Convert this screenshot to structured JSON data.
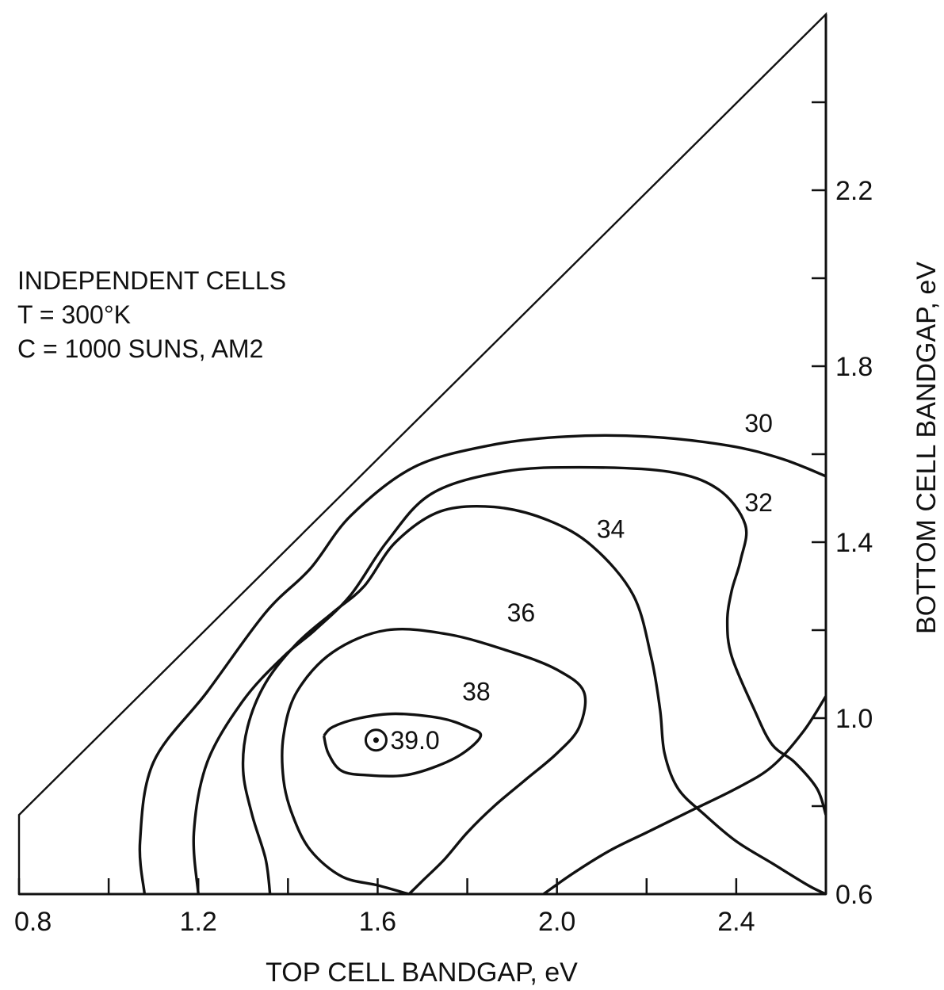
{
  "chart_data": {
    "type": "contour",
    "xlabel": "TOP CELL BANDGAP, eV",
    "ylabel": "BOTTOM CELL BANDGAP, eV",
    "xlim": [
      0.8,
      2.6
    ],
    "ylim": [
      0.6,
      2.6
    ],
    "x_ticks": [
      0.8,
      1.2,
      1.6,
      2.0,
      2.4
    ],
    "x_minor_ticks": [
      1.0,
      1.4,
      1.8,
      2.2
    ],
    "y_ticks": [
      0.6,
      1.0,
      1.4,
      1.8,
      2.2
    ],
    "y_minor_ticks": [
      0.8,
      1.2,
      1.6,
      2.0,
      2.4
    ],
    "annotation_lines": [
      "INDEPENDENT CELLS",
      "T  =  300°K",
      "C  =  1000 SUNS, AM2"
    ],
    "boundary": {
      "description": "region where bottom cell bandgap < top cell bandgap",
      "points": [
        [
          0.8,
          0.6
        ],
        [
          0.8,
          0.78
        ],
        [
          2.6,
          2.6
        ],
        [
          2.6,
          0.6
        ]
      ]
    },
    "optimum": {
      "x": 1.6,
      "y": 0.95,
      "label": "39.0"
    },
    "contours": [
      {
        "level": 30,
        "label": "30",
        "label_at": [
          2.45,
          1.67
        ],
        "points": [
          [
            1.08,
            0.6
          ],
          [
            1.07,
            0.72
          ],
          [
            1.1,
            0.9
          ],
          [
            1.22,
            1.06
          ],
          [
            1.35,
            1.24
          ],
          [
            1.45,
            1.34
          ],
          [
            1.54,
            1.46
          ],
          [
            1.68,
            1.57
          ],
          [
            1.85,
            1.62
          ],
          [
            2.02,
            1.64
          ],
          [
            2.2,
            1.64
          ],
          [
            2.38,
            1.62
          ],
          [
            2.5,
            1.59
          ],
          [
            2.6,
            1.55
          ]
        ]
      },
      {
        "level": 32,
        "label": "32",
        "label_at": [
          2.45,
          1.49
        ],
        "points": [
          [
            1.2,
            0.6
          ],
          [
            1.19,
            0.74
          ],
          [
            1.22,
            0.9
          ],
          [
            1.3,
            1.04
          ],
          [
            1.39,
            1.14
          ],
          [
            1.46,
            1.2
          ],
          [
            1.54,
            1.28
          ],
          [
            1.62,
            1.4
          ],
          [
            1.72,
            1.51
          ],
          [
            1.88,
            1.56
          ],
          [
            2.05,
            1.57
          ],
          [
            2.25,
            1.56
          ],
          [
            2.36,
            1.52
          ],
          [
            2.42,
            1.44
          ],
          [
            2.41,
            1.36
          ],
          [
            2.39,
            1.29
          ],
          [
            2.38,
            1.22
          ],
          [
            2.39,
            1.14
          ],
          [
            2.44,
            1.02
          ],
          [
            2.48,
            0.94
          ],
          [
            2.53,
            0.9
          ],
          [
            2.58,
            0.84
          ],
          [
            2.6,
            0.78
          ]
        ]
      },
      {
        "level": 34,
        "label": "34",
        "label_at": [
          2.12,
          1.43
        ],
        "points": [
          [
            1.36,
            0.6
          ],
          [
            1.35,
            0.68
          ],
          [
            1.32,
            0.78
          ],
          [
            1.3,
            0.88
          ],
          [
            1.31,
            0.98
          ],
          [
            1.35,
            1.08
          ],
          [
            1.42,
            1.17
          ],
          [
            1.5,
            1.24
          ],
          [
            1.57,
            1.3
          ],
          [
            1.64,
            1.4
          ],
          [
            1.74,
            1.47
          ],
          [
            1.86,
            1.48
          ],
          [
            1.98,
            1.45
          ],
          [
            2.08,
            1.39
          ],
          [
            2.17,
            1.28
          ],
          [
            2.21,
            1.14
          ],
          [
            2.23,
            1.02
          ],
          [
            2.24,
            0.92
          ],
          [
            2.27,
            0.84
          ],
          [
            2.33,
            0.78
          ],
          [
            2.4,
            0.72
          ],
          [
            2.48,
            0.67
          ],
          [
            2.56,
            0.62
          ],
          [
            2.6,
            0.6
          ]
        ]
      },
      {
        "level": 36,
        "label": "36",
        "label_at": [
          1.92,
          1.24
        ],
        "points": [
          [
            1.67,
            0.6
          ],
          [
            1.6,
            0.62
          ],
          [
            1.52,
            0.64
          ],
          [
            1.45,
            0.7
          ],
          [
            1.41,
            0.78
          ],
          [
            1.39,
            0.86
          ],
          [
            1.39,
            0.96
          ],
          [
            1.42,
            1.06
          ],
          [
            1.5,
            1.15
          ],
          [
            1.62,
            1.2
          ],
          [
            1.76,
            1.19
          ],
          [
            1.9,
            1.15
          ],
          [
            2.0,
            1.11
          ],
          [
            2.06,
            1.06
          ],
          [
            2.05,
            0.98
          ],
          [
            2.0,
            0.92
          ],
          [
            1.93,
            0.86
          ],
          [
            1.86,
            0.8
          ],
          [
            1.8,
            0.74
          ],
          [
            1.75,
            0.68
          ],
          [
            1.7,
            0.63
          ],
          [
            1.67,
            0.6
          ]
        ]
      },
      {
        "level": 38,
        "label": "38",
        "label_at": [
          1.82,
          1.06
        ],
        "points": [
          [
            1.48,
            0.96
          ],
          [
            1.5,
            0.98
          ],
          [
            1.56,
            1.0
          ],
          [
            1.64,
            1.01
          ],
          [
            1.74,
            1.0
          ],
          [
            1.8,
            0.98
          ],
          [
            1.83,
            0.96
          ],
          [
            1.79,
            0.92
          ],
          [
            1.73,
            0.89
          ],
          [
            1.66,
            0.87
          ],
          [
            1.58,
            0.87
          ],
          [
            1.52,
            0.88
          ],
          [
            1.49,
            0.92
          ],
          [
            1.48,
            0.96
          ]
        ]
      },
      {
        "level": 39,
        "label": null,
        "label_at": null,
        "points": [
          [
            1.97,
            0.6
          ],
          [
            2.04,
            0.65
          ],
          [
            2.12,
            0.7
          ],
          [
            2.2,
            0.74
          ],
          [
            2.3,
            0.79
          ],
          [
            2.4,
            0.84
          ],
          [
            2.48,
            0.89
          ],
          [
            2.55,
            0.97
          ],
          [
            2.6,
            1.05
          ]
        ]
      }
    ]
  }
}
